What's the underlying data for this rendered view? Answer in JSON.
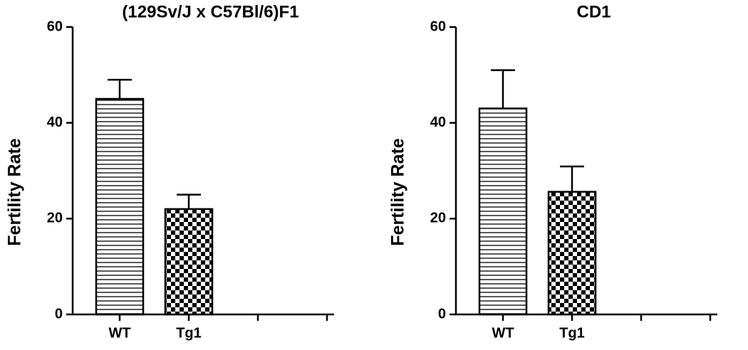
{
  "chart_data": [
    {
      "type": "bar",
      "title": "(129Sv/J x C57Bl/6)F1",
      "ylabel": "Fertility Rate",
      "categories": [
        "WT",
        "Tg1",
        null,
        null
      ],
      "values": [
        45,
        22,
        null,
        null
      ],
      "errors": [
        4,
        3,
        null,
        null
      ],
      "fills": [
        "horizontal-lines",
        "checkerboard",
        null,
        null
      ],
      "color": "#000000",
      "ylim": [
        0,
        60
      ],
      "yticks": [
        0,
        20,
        40,
        60
      ]
    },
    {
      "type": "bar",
      "title": "CD1",
      "ylabel": "Fertility Rate",
      "categories": [
        "WT",
        "Tg1",
        null,
        null
      ],
      "values": [
        43,
        25.6,
        null,
        null
      ],
      "errors": [
        8,
        5.3,
        null,
        null
      ],
      "fills": [
        "horizontal-lines",
        "checkerboard",
        null,
        null
      ],
      "color": "#000000",
      "ylim": [
        0,
        60
      ],
      "yticks": [
        0,
        20,
        40,
        60
      ]
    }
  ]
}
